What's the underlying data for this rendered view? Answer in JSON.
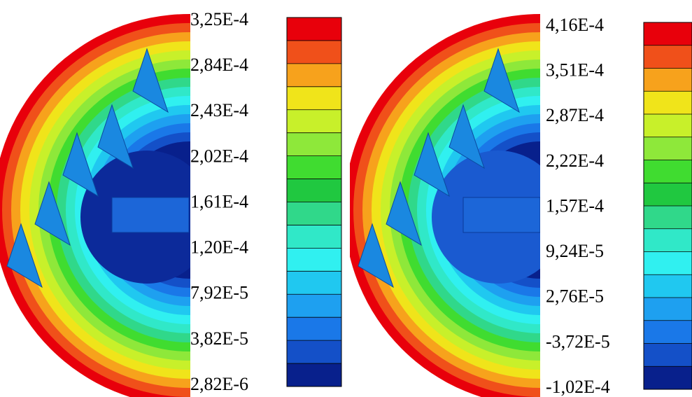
{
  "panels": [
    {
      "legend": {
        "labels": [
          "3,25E-4",
          "2,84E-4",
          "2,43E-4",
          "2,02E-4",
          "1,61E-4",
          "1,20E-4",
          "7,92E-5",
          "3,82E-5",
          "2,82E-6"
        ]
      }
    },
    {
      "legend": {
        "labels": [
          "4,16E-4",
          "3,51E-4",
          "2,87E-4",
          "2,22E-4",
          "1,57E-4",
          "9,24E-5",
          "2,76E-5",
          "-3,72E-5",
          "-1,02E-4"
        ]
      }
    }
  ]
}
